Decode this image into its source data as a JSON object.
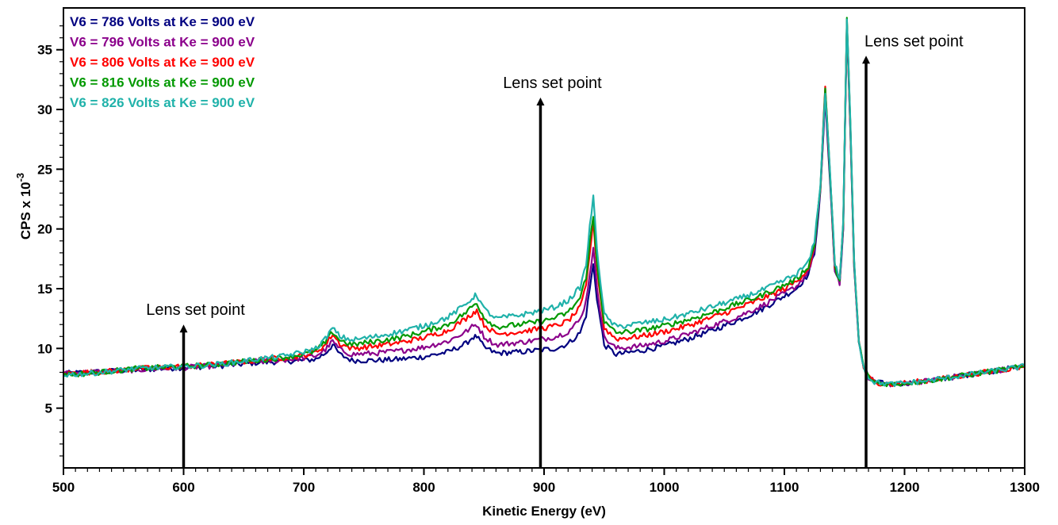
{
  "chart_data": {
    "type": "line",
    "xlabel": "Kinetic Energy (eV)",
    "ylabel": "CPS x 10",
    "ylabel_superscript": "-3",
    "xlim": [
      500,
      1300
    ],
    "ylim": [
      0,
      38.5
    ],
    "x_ticks": [
      500,
      600,
      700,
      800,
      900,
      1000,
      1100,
      1200,
      1300
    ],
    "y_ticks": [
      5,
      10,
      15,
      20,
      25,
      30,
      35
    ],
    "grid": false,
    "legend_position": "top-left",
    "x": [
      500,
      520,
      540,
      560,
      580,
      600,
      620,
      640,
      660,
      680,
      700,
      710,
      718,
      724,
      730,
      740,
      760,
      780,
      800,
      820,
      835,
      840,
      844,
      850,
      860,
      880,
      900,
      910,
      920,
      930,
      935,
      938,
      941,
      944,
      950,
      960,
      980,
      1000,
      1020,
      1040,
      1060,
      1080,
      1100,
      1110,
      1120,
      1125,
      1130,
      1134,
      1138,
      1142,
      1146,
      1149,
      1152,
      1155,
      1158,
      1162,
      1166,
      1170,
      1175,
      1180,
      1190,
      1200,
      1220,
      1240,
      1260,
      1280,
      1300
    ],
    "series": [
      {
        "name": "V6 = 786 Volts at Ke = 900 eV",
        "color": "#000080",
        "values": [
          7.9,
          8.0,
          8.1,
          8.2,
          8.3,
          8.4,
          8.5,
          8.6,
          8.8,
          8.9,
          9.0,
          9.1,
          9.6,
          10.3,
          9.5,
          9.0,
          9.0,
          9.1,
          9.3,
          9.7,
          10.4,
          10.9,
          11.0,
          10.1,
          9.6,
          9.7,
          9.9,
          10.0,
          10.4,
          11.3,
          12.8,
          15.0,
          17.0,
          14.2,
          10.3,
          9.5,
          9.8,
          10.2,
          10.8,
          11.5,
          12.3,
          13.2,
          14.4,
          15.0,
          16.2,
          18.0,
          23.0,
          31.0,
          24.0,
          16.5,
          15.5,
          20.0,
          36.8,
          28.0,
          17.0,
          10.5,
          8.4,
          7.6,
          7.2,
          7.1,
          7.0,
          7.1,
          7.3,
          7.6,
          7.9,
          8.2,
          8.5
        ]
      },
      {
        "name": "V6 = 796 Volts at Ke = 900 eV",
        "color": "#8B008B",
        "values": [
          7.9,
          8.0,
          8.1,
          8.2,
          8.3,
          8.4,
          8.5,
          8.7,
          8.9,
          9.0,
          9.2,
          9.4,
          9.9,
          10.6,
          9.9,
          9.5,
          9.6,
          9.8,
          10.1,
          10.6,
          11.4,
          11.8,
          12.0,
          11.0,
          10.3,
          10.5,
          10.8,
          11.0,
          11.4,
          12.4,
          14.0,
          16.3,
          18.3,
          15.2,
          10.9,
          10.0,
          10.2,
          10.6,
          11.2,
          11.9,
          12.6,
          13.5,
          14.6,
          15.2,
          16.4,
          18.2,
          23.2,
          31.3,
          24.2,
          16.6,
          15.5,
          20.1,
          37.0,
          28.2,
          17.1,
          10.5,
          8.4,
          7.6,
          7.2,
          7.1,
          7.0,
          7.1,
          7.3,
          7.6,
          7.9,
          8.2,
          8.5
        ]
      },
      {
        "name": "V6 = 806 Volts at Ke = 900 eV",
        "color": "#FF0000",
        "values": [
          7.9,
          8.0,
          8.1,
          8.3,
          8.4,
          8.5,
          8.6,
          8.8,
          9.0,
          9.2,
          9.4,
          9.7,
          10.3,
          11.2,
          10.4,
          10.0,
          10.2,
          10.5,
          10.9,
          11.5,
          12.5,
          12.9,
          13.2,
          12.0,
          11.2,
          11.4,
          11.7,
          11.9,
          12.3,
          13.4,
          15.2,
          18.0,
          20.6,
          16.8,
          11.7,
          10.8,
          11.0,
          11.4,
          11.9,
          12.6,
          13.3,
          14.1,
          15.0,
          15.6,
          16.7,
          18.4,
          23.5,
          32.0,
          24.5,
          16.8,
          15.6,
          20.3,
          37.4,
          28.5,
          17.2,
          10.6,
          8.4,
          7.6,
          7.2,
          7.1,
          7.0,
          7.1,
          7.3,
          7.6,
          7.9,
          8.2,
          8.5
        ]
      },
      {
        "name": "V6 = 816 Volts at Ke = 900 eV",
        "color": "#009900",
        "values": [
          7.8,
          7.9,
          8.1,
          8.3,
          8.4,
          8.5,
          8.6,
          8.8,
          9.0,
          9.2,
          9.5,
          9.8,
          10.5,
          11.4,
          10.7,
          10.3,
          10.6,
          10.9,
          11.4,
          12.0,
          13.0,
          13.5,
          13.8,
          12.6,
          11.8,
          12.0,
          12.3,
          12.6,
          13.0,
          14.2,
          16.0,
          18.8,
          21.0,
          17.2,
          12.2,
          11.3,
          11.5,
          11.9,
          12.4,
          13.0,
          13.7,
          14.4,
          15.3,
          15.8,
          16.9,
          18.6,
          23.6,
          31.8,
          24.6,
          16.9,
          15.7,
          20.4,
          37.5,
          28.6,
          17.3,
          10.6,
          8.4,
          7.6,
          7.2,
          7.1,
          7.0,
          7.1,
          7.3,
          7.6,
          7.9,
          8.2,
          8.5
        ]
      },
      {
        "name": "V6 = 826 Volts at Ke = 900 eV",
        "color": "#20B2AA",
        "values": [
          7.8,
          7.9,
          8.1,
          8.3,
          8.4,
          8.5,
          8.6,
          8.8,
          9.1,
          9.3,
          9.7,
          10.0,
          10.8,
          11.7,
          11.0,
          10.7,
          11.0,
          11.4,
          11.9,
          12.6,
          13.7,
          14.2,
          14.5,
          13.3,
          12.5,
          12.8,
          13.2,
          13.5,
          14.0,
          15.1,
          17.0,
          20.2,
          22.6,
          18.4,
          12.8,
          11.8,
          12.1,
          12.4,
          12.9,
          13.5,
          14.1,
          14.8,
          15.7,
          16.2,
          17.2,
          18.9,
          23.8,
          31.5,
          24.8,
          17.1,
          15.8,
          20.5,
          37.6,
          28.7,
          17.4,
          10.7,
          8.4,
          7.6,
          7.2,
          7.1,
          7.0,
          7.1,
          7.3,
          7.6,
          7.9,
          8.2,
          8.5
        ]
      }
    ],
    "annotations": [
      {
        "text": "Lens set point",
        "x": 600,
        "y_from": 0,
        "y_to": 12.0
      },
      {
        "text": "Lens set point",
        "x": 897,
        "y_from": 0,
        "y_to": 31.0
      },
      {
        "text": "Lens set point",
        "x": 1168,
        "y_from": 0,
        "y_to": 34.5
      }
    ]
  }
}
